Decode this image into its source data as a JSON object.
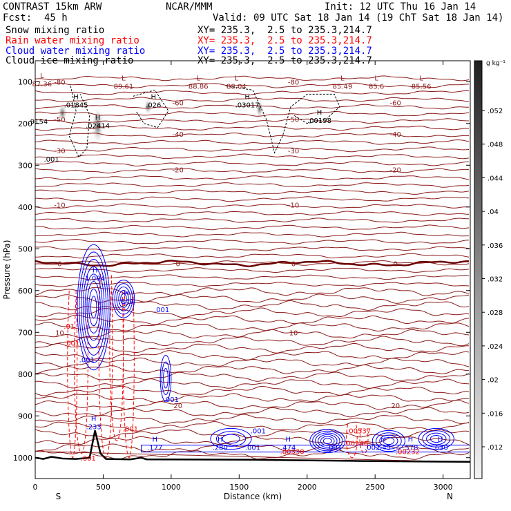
{
  "header": {
    "title": "CONTRAST 15km ARW",
    "fcst_label": "Fcst:",
    "fcst_value": "45 h",
    "org": "NCAR/MMM",
    "init": "Init: 12 UTC Thu 16 Jan 14",
    "valid": "Valid: 09 UTC Sat 18 Jan 14 (19 ChT Sat 18 Jan 14)"
  },
  "fields": [
    {
      "label": "Snow mixing ratio",
      "coords": "XY= 235.3,  2.5 to 235.3,214.7",
      "color": "#000000"
    },
    {
      "label": "Rain water mixing ratio",
      "coords": "XY= 235.3,  2.5 to 235.3,214.7",
      "color": "#ff0000"
    },
    {
      "label": "Cloud water mixing ratio",
      "coords": "XY= 235.3,  2.5 to 235.3,214.7",
      "color": "#0000ff"
    },
    {
      "label": "Cloud ice mixing ratio",
      "coords": "XY= 235.3,  2.5 to 235.3,214.7",
      "color": "#000000"
    }
  ],
  "colorbar": {
    "unit": "g kg⁻¹",
    "ticks": [
      ".052",
      ".048",
      ".044",
      ".04",
      ".036",
      ".032",
      ".028",
      ".024",
      ".02",
      ".016",
      ".012"
    ]
  },
  "chart_data": {
    "type": "cross-section contour",
    "xlabel": "Distance (km)",
    "ylabel": "Pressure (hPa)",
    "xlim": [
      0,
      3200
    ],
    "ylim": [
      1050,
      50
    ],
    "x_ticks": [
      0,
      500,
      1000,
      1500,
      2000,
      2500,
      3000
    ],
    "y_ticks": [
      100,
      200,
      300,
      400,
      500,
      600,
      700,
      800,
      900,
      1000
    ],
    "x_end_labels": {
      "left": "S",
      "right": "N"
    },
    "temperature_contours": [
      {
        "label": "-80",
        "p": 100
      },
      {
        "label": "-60",
        "p": 150
      },
      {
        "label": "-50",
        "p": 190
      },
      {
        "label": "-40",
        "p": 225
      },
      {
        "label": "-30",
        "p": 265
      },
      {
        "label": "-20",
        "p": 310
      },
      {
        "label": "-10",
        "p": 395
      },
      {
        "label": "0",
        "p": 535
      },
      {
        "label": "10",
        "p": 700
      },
      {
        "label": "20",
        "p": 875
      }
    ],
    "extrema_labels": [
      {
        "kind": "L",
        "value": "87.36",
        "x": 50,
        "p": 95
      },
      {
        "kind": "L",
        "value": "89.61",
        "x": 650,
        "p": 100
      },
      {
        "kind": "L",
        "value": "88.86",
        "x": 1200,
        "p": 100
      },
      {
        "kind": "L",
        "value": "88.04",
        "x": 1480,
        "p": 100
      },
      {
        "kind": "L",
        "value": "85.49",
        "x": 2260,
        "p": 100
      },
      {
        "kind": "L",
        "value": "85.6",
        "x": 2510,
        "p": 100
      },
      {
        "kind": "L",
        "value": "85.56",
        "x": 2840,
        "p": 100
      },
      {
        "kind": "H",
        "value": ".01845",
        "x": 300,
        "p": 145
      },
      {
        "kind": "H",
        "value": ".026",
        "x": 870,
        "p": 145
      },
      {
        "kind": "H",
        "value": ".03017",
        "x": 1560,
        "p": 145
      },
      {
        "kind": "H",
        "value": ".00198",
        "x": 2090,
        "p": 182
      },
      {
        "kind": "H",
        "value": ".02414",
        "x": 460,
        "p": 195
      },
      {
        "kind": "H",
        "value": "1.004",
        "x": 440,
        "p": 560
      },
      {
        "kind": "H",
        "value": ".849",
        "x": 670,
        "p": 615
      },
      {
        "kind": "H",
        "value": ".233",
        "x": 430,
        "p": 915
      },
      {
        "kind": "H",
        "value": ".177",
        "x": 880,
        "p": 965
      },
      {
        "kind": "H",
        "value": ".280",
        "x": 1360,
        "p": 965
      },
      {
        "kind": "H",
        "value": ".474",
        "x": 1860,
        "p": 965
      },
      {
        "kind": "H",
        "value": ".545",
        "x": 2560,
        "p": 965
      },
      {
        "kind": "H",
        "value": ".578",
        "x": 2760,
        "p": 965
      },
      {
        "kind": "H",
        "value": ".630",
        "x": 2980,
        "p": 965
      }
    ],
    "contour_value_labels": [
      {
        "value": ".001",
        "x": 120,
        "p": 285,
        "color": "#000000"
      },
      {
        "value": ".9154",
        "x": 20,
        "p": 195,
        "color": "#000000"
      },
      {
        "value": ".001",
        "x": 1000,
        "p": 860,
        "color": "#0000ff"
      },
      {
        "value": ".001",
        "x": 930,
        "p": 645,
        "color": "#0000ff"
      },
      {
        "value": ".001",
        "x": 1600,
        "p": 975,
        "color": "#0000ff"
      },
      {
        "value": ".001",
        "x": 1640,
        "p": 935,
        "color": "#0000ff"
      },
      {
        "value": ".001",
        "x": 2200,
        "p": 975,
        "color": "#0000ff"
      },
      {
        "value": ".001",
        "x": 2480,
        "p": 975,
        "color": "#0000ff"
      },
      {
        "value": ".001",
        "x": 380,
        "p": 765,
        "color": "#0000ff"
      },
      {
        "value": ".001",
        "x": 390,
        "p": 1000,
        "color": "#ff0000"
      },
      {
        "value": ".001",
        "x": 700,
        "p": 930,
        "color": "#ff0000"
      },
      {
        "value": ".001",
        "x": 270,
        "p": 725,
        "color": "#ff0000"
      },
      {
        "value": ".01",
        "x": 250,
        "p": 685,
        "color": "#ff0000"
      },
      {
        "value": ".00330",
        "x": 1890,
        "p": 985,
        "color": "#ff0000"
      },
      {
        "value": ".00232",
        "x": 2740,
        "p": 985,
        "color": "#ff0000"
      },
      {
        "value": ".00546",
        "x": 2360,
        "p": 965,
        "color": "#ff0000"
      },
      {
        "value": ".00537",
        "x": 2380,
        "p": 935,
        "color": "#ff0000"
      }
    ],
    "surface_pressure_peak": {
      "x": 440,
      "p": 935
    }
  }
}
